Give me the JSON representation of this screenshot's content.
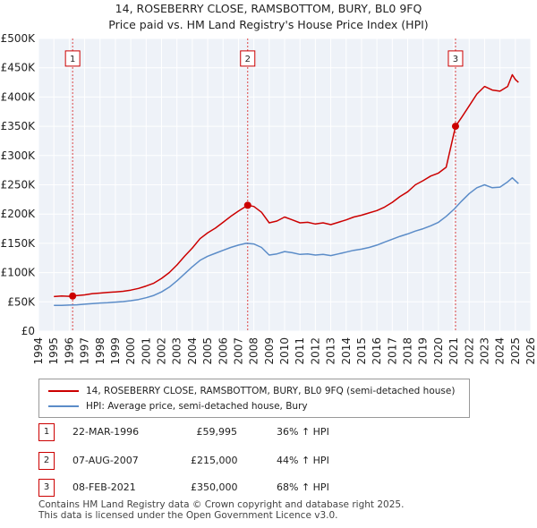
{
  "chart_data": {
    "type": "line",
    "title": "14, ROSEBERRY CLOSE, RAMSBOTTOM, BURY, BL0 9FQ",
    "subtitle": "Price paid vs. HM Land Registry's House Price Index (HPI)",
    "xlabel": "",
    "ylabel": "",
    "xlim": [
      1994,
      2026
    ],
    "ylim": [
      0,
      500000
    ],
    "x_ticks": [
      "1994",
      "1995",
      "1996",
      "1997",
      "1998",
      "1999",
      "2000",
      "2001",
      "2002",
      "2003",
      "2004",
      "2005",
      "2006",
      "2007",
      "2008",
      "2009",
      "2010",
      "2011",
      "2012",
      "2013",
      "2014",
      "2015",
      "2016",
      "2017",
      "2018",
      "2019",
      "2020",
      "2021",
      "2022",
      "2023",
      "2024",
      "2025",
      "2026"
    ],
    "y_ticks": [
      {
        "value": 0,
        "label": "£0"
      },
      {
        "value": 50000,
        "label": "£50K"
      },
      {
        "value": 100000,
        "label": "£100K"
      },
      {
        "value": 150000,
        "label": "£150K"
      },
      {
        "value": 200000,
        "label": "£200K"
      },
      {
        "value": 250000,
        "label": "£250K"
      },
      {
        "value": 300000,
        "label": "£300K"
      },
      {
        "value": 350000,
        "label": "£350K"
      },
      {
        "value": 400000,
        "label": "£400K"
      },
      {
        "value": 450000,
        "label": "£450K"
      },
      {
        "value": 500000,
        "label": "£500K"
      }
    ],
    "grid": true,
    "series": [
      {
        "name": "14, ROSEBERRY CLOSE, RAMSBOTTOM, BURY, BL0 9FQ (semi-detached house)",
        "color": "#cc0000",
        "points": [
          [
            1995.0,
            59000
          ],
          [
            1995.5,
            60000
          ],
          [
            1996.0,
            59500
          ],
          [
            1996.22,
            59995
          ],
          [
            1996.6,
            61000
          ],
          [
            1997.0,
            62000
          ],
          [
            1997.5,
            64000
          ],
          [
            1998.0,
            65000
          ],
          [
            1998.5,
            66000
          ],
          [
            1999.0,
            67000
          ],
          [
            1999.5,
            68000
          ],
          [
            2000.0,
            70000
          ],
          [
            2000.5,
            73000
          ],
          [
            2001.0,
            77000
          ],
          [
            2001.5,
            82000
          ],
          [
            2002.0,
            90000
          ],
          [
            2002.5,
            100000
          ],
          [
            2003.0,
            113000
          ],
          [
            2003.5,
            128000
          ],
          [
            2004.0,
            142000
          ],
          [
            2004.5,
            158000
          ],
          [
            2005.0,
            168000
          ],
          [
            2005.5,
            176000
          ],
          [
            2006.0,
            186000
          ],
          [
            2006.5,
            196000
          ],
          [
            2007.0,
            205000
          ],
          [
            2007.6,
            215000
          ],
          [
            2008.0,
            213000
          ],
          [
            2008.5,
            203000
          ],
          [
            2009.0,
            185000
          ],
          [
            2009.5,
            188000
          ],
          [
            2010.0,
            195000
          ],
          [
            2010.5,
            190000
          ],
          [
            2011.0,
            185000
          ],
          [
            2011.5,
            186000
          ],
          [
            2012.0,
            183000
          ],
          [
            2012.5,
            185000
          ],
          [
            2013.0,
            182000
          ],
          [
            2013.5,
            186000
          ],
          [
            2014.0,
            190000
          ],
          [
            2014.5,
            195000
          ],
          [
            2015.0,
            198000
          ],
          [
            2015.5,
            202000
          ],
          [
            2016.0,
            206000
          ],
          [
            2016.5,
            212000
          ],
          [
            2017.0,
            220000
          ],
          [
            2017.5,
            230000
          ],
          [
            2018.0,
            238000
          ],
          [
            2018.5,
            250000
          ],
          [
            2019.0,
            257000
          ],
          [
            2019.5,
            265000
          ],
          [
            2020.0,
            270000
          ],
          [
            2020.5,
            280000
          ],
          [
            2021.11,
            350000
          ],
          [
            2021.5,
            365000
          ],
          [
            2022.0,
            385000
          ],
          [
            2022.5,
            405000
          ],
          [
            2023.0,
            418000
          ],
          [
            2023.5,
            412000
          ],
          [
            2024.0,
            410000
          ],
          [
            2024.5,
            418000
          ],
          [
            2024.8,
            438000
          ],
          [
            2025.0,
            430000
          ],
          [
            2025.2,
            425000
          ]
        ]
      },
      {
        "name": "HPI: Average price, semi-detached house, Bury",
        "color": "#5b8cc8",
        "points": [
          [
            1995.0,
            44000
          ],
          [
            1995.5,
            44000
          ],
          [
            1996.0,
            44500
          ],
          [
            1996.5,
            45000
          ],
          [
            1997.0,
            46000
          ],
          [
            1997.5,
            47000
          ],
          [
            1998.0,
            48000
          ],
          [
            1998.5,
            48500
          ],
          [
            1999.0,
            49500
          ],
          [
            1999.5,
            50500
          ],
          [
            2000.0,
            52000
          ],
          [
            2000.5,
            54000
          ],
          [
            2001.0,
            57000
          ],
          [
            2001.5,
            61000
          ],
          [
            2002.0,
            67000
          ],
          [
            2002.5,
            75000
          ],
          [
            2003.0,
            86000
          ],
          [
            2003.5,
            98000
          ],
          [
            2004.0,
            110000
          ],
          [
            2004.5,
            121000
          ],
          [
            2005.0,
            128000
          ],
          [
            2005.5,
            133000
          ],
          [
            2006.0,
            138000
          ],
          [
            2006.5,
            143000
          ],
          [
            2007.0,
            147000
          ],
          [
            2007.5,
            150000
          ],
          [
            2008.0,
            149000
          ],
          [
            2008.5,
            143000
          ],
          [
            2009.0,
            130000
          ],
          [
            2009.5,
            132000
          ],
          [
            2010.0,
            136000
          ],
          [
            2010.5,
            134000
          ],
          [
            2011.0,
            131000
          ],
          [
            2011.5,
            132000
          ],
          [
            2012.0,
            130000
          ],
          [
            2012.5,
            131000
          ],
          [
            2013.0,
            129000
          ],
          [
            2013.5,
            132000
          ],
          [
            2014.0,
            135000
          ],
          [
            2014.5,
            138000
          ],
          [
            2015.0,
            140000
          ],
          [
            2015.5,
            143000
          ],
          [
            2016.0,
            147000
          ],
          [
            2016.5,
            152000
          ],
          [
            2017.0,
            157000
          ],
          [
            2017.5,
            162000
          ],
          [
            2018.0,
            166000
          ],
          [
            2018.5,
            171000
          ],
          [
            2019.0,
            175000
          ],
          [
            2019.5,
            180000
          ],
          [
            2020.0,
            186000
          ],
          [
            2020.5,
            196000
          ],
          [
            2021.0,
            208000
          ],
          [
            2021.5,
            222000
          ],
          [
            2022.0,
            235000
          ],
          [
            2022.5,
            245000
          ],
          [
            2023.0,
            250000
          ],
          [
            2023.5,
            245000
          ],
          [
            2024.0,
            246000
          ],
          [
            2024.5,
            255000
          ],
          [
            2024.8,
            262000
          ],
          [
            2025.0,
            257000
          ],
          [
            2025.2,
            252000
          ]
        ]
      }
    ],
    "sales": [
      {
        "label": "1",
        "x": 1996.22,
        "price": 59995
      },
      {
        "label": "2",
        "x": 2007.6,
        "price": 215000
      },
      {
        "label": "3",
        "x": 2021.11,
        "price": 350000
      }
    ],
    "marker_label_price": 465000
  },
  "legend": {
    "property": "14, ROSEBERRY CLOSE, RAMSBOTTOM, BURY, BL0 9FQ (semi-detached house)",
    "hpi": "HPI: Average price, semi-detached house, Bury"
  },
  "transactions": [
    {
      "num": "1",
      "date": "22-MAR-1996",
      "price": "£59,995",
      "hpi": "36% ↑ HPI"
    },
    {
      "num": "2",
      "date": "07-AUG-2007",
      "price": "£215,000",
      "hpi": "44% ↑ HPI"
    },
    {
      "num": "3",
      "date": "08-FEB-2021",
      "price": "£350,000",
      "hpi": "68% ↑ HPI"
    }
  ],
  "footer": {
    "line1": "Contains HM Land Registry data © Crown copyright and database right 2025.",
    "line2": "This data is licensed under the Open Government Licence v3.0."
  },
  "colors": {
    "property_line": "#cc0000",
    "hpi_line": "#5b8cc8",
    "plot_bg": "#eef2f8",
    "grid": "#ffffff"
  }
}
